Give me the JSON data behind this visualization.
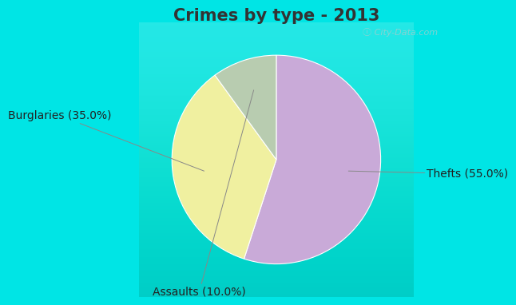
{
  "title": "Crimes by type - 2013",
  "slices": [
    {
      "label": "Thefts (55.0%)",
      "value": 55.0,
      "color": "#c9aad8"
    },
    {
      "label": "Burglaries (35.0%)",
      "value": 35.0,
      "color": "#f0f0a0"
    },
    {
      "label": "Assaults (10.0%)",
      "value": 10.0,
      "color": "#b8ccb0"
    }
  ],
  "bg_cyan": "#00e5e5",
  "bg_main_top": "#e8f8f4",
  "bg_main_bottom": "#d0eee0",
  "title_fontsize": 15,
  "label_fontsize": 10,
  "watermark": "ⓘ City-Data.com",
  "title_color": "#333333",
  "startangle": 90
}
